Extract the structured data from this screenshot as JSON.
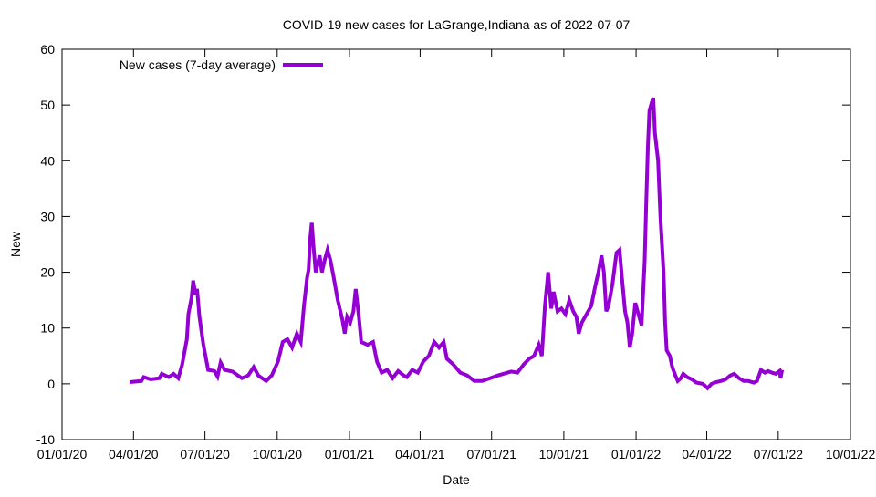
{
  "chart_data": {
    "type": "line",
    "title": "COVID-19 new cases for LaGrange,Indiana as of 2022-07-07",
    "xlabel": "Date",
    "ylabel": "New",
    "x_origin": "2020-01-01",
    "x_unit": "days since x_origin",
    "xlim": [
      0,
      1004
    ],
    "ylim": [
      -10,
      60
    ],
    "yticks": [
      -10,
      0,
      10,
      20,
      30,
      40,
      50,
      60
    ],
    "xticks": [
      {
        "day": 0,
        "label": "01/01/20"
      },
      {
        "day": 91,
        "label": "04/01/20"
      },
      {
        "day": 182,
        "label": "07/01/20"
      },
      {
        "day": 274,
        "label": "10/01/20"
      },
      {
        "day": 366,
        "label": "01/01/21"
      },
      {
        "day": 456,
        "label": "04/01/21"
      },
      {
        "day": 547,
        "label": "07/01/21"
      },
      {
        "day": 639,
        "label": "10/01/21"
      },
      {
        "day": 731,
        "label": "01/01/22"
      },
      {
        "day": 821,
        "label": "04/01/22"
      },
      {
        "day": 912,
        "label": "07/01/22"
      },
      {
        "day": 1004,
        "label": "10/01/22"
      }
    ],
    "grid": false,
    "legend_position": "top-left",
    "series": [
      {
        "name": "New cases (7-day average)",
        "color": "#9400d3",
        "points": [
          [
            86,
            0.3
          ],
          [
            101,
            0.5
          ],
          [
            104,
            1.2
          ],
          [
            113,
            0.8
          ],
          [
            124,
            1.0
          ],
          [
            127,
            1.8
          ],
          [
            136,
            1.2
          ],
          [
            142,
            1.8
          ],
          [
            148,
            1.0
          ],
          [
            153,
            3.5
          ],
          [
            159,
            8
          ],
          [
            161,
            12.5
          ],
          [
            165,
            15.5
          ],
          [
            167,
            18.5
          ],
          [
            170,
            16
          ],
          [
            172,
            17
          ],
          [
            175,
            12
          ],
          [
            180,
            7
          ],
          [
            186,
            2.5
          ],
          [
            194,
            2.3
          ],
          [
            198,
            1.3
          ],
          [
            202,
            3.8
          ],
          [
            207,
            2.5
          ],
          [
            217,
            2.2
          ],
          [
            229,
            1.0
          ],
          [
            237,
            1.5
          ],
          [
            244,
            3
          ],
          [
            250,
            1.5
          ],
          [
            260,
            0.5
          ],
          [
            267,
            1.5
          ],
          [
            275,
            4
          ],
          [
            281,
            7.5
          ],
          [
            287,
            8
          ],
          [
            293,
            6.5
          ],
          [
            299,
            9
          ],
          [
            304,
            7.5
          ],
          [
            308,
            14
          ],
          [
            312,
            19
          ],
          [
            314,
            20.5
          ],
          [
            316,
            26
          ],
          [
            318,
            29
          ],
          [
            320,
            25
          ],
          [
            323,
            20
          ],
          [
            328,
            23
          ],
          [
            331,
            20
          ],
          [
            335,
            22.5
          ],
          [
            338,
            24
          ],
          [
            342,
            22
          ],
          [
            346,
            19
          ],
          [
            351,
            15
          ],
          [
            357,
            11.5
          ],
          [
            360,
            9
          ],
          [
            363,
            12
          ],
          [
            367,
            11
          ],
          [
            371,
            13
          ],
          [
            374,
            17
          ],
          [
            378,
            12
          ],
          [
            381,
            7.5
          ],
          [
            389,
            7
          ],
          [
            396,
            7.5
          ],
          [
            401,
            4
          ],
          [
            407,
            2
          ],
          [
            414,
            2.5
          ],
          [
            421,
            1
          ],
          [
            428,
            2.3
          ],
          [
            435,
            1.5
          ],
          [
            439,
            1.2
          ],
          [
            446,
            2.5
          ],
          [
            453,
            2
          ],
          [
            460,
            4
          ],
          [
            467,
            5
          ],
          [
            474,
            7.5
          ],
          [
            480,
            6.5
          ],
          [
            486,
            7.5
          ],
          [
            490,
            4.5
          ],
          [
            498,
            3.5
          ],
          [
            507,
            2
          ],
          [
            516,
            1.5
          ],
          [
            525,
            0.5
          ],
          [
            535,
            0.5
          ],
          [
            545,
            1
          ],
          [
            555,
            1.5
          ],
          [
            562,
            1.8
          ],
          [
            572,
            2.2
          ],
          [
            580,
            2
          ],
          [
            588,
            3.5
          ],
          [
            595,
            4.5
          ],
          [
            601,
            5
          ],
          [
            607,
            7
          ],
          [
            611,
            5
          ],
          [
            615,
            14
          ],
          [
            619,
            20
          ],
          [
            623,
            13.5
          ],
          [
            626,
            16.5
          ],
          [
            631,
            13
          ],
          [
            636,
            13.5
          ],
          [
            641,
            12.5
          ],
          [
            646,
            15
          ],
          [
            651,
            13
          ],
          [
            655,
            12
          ],
          [
            658,
            9
          ],
          [
            662,
            11
          ],
          [
            668,
            12.5
          ],
          [
            674,
            14
          ],
          [
            679,
            17.5
          ],
          [
            683,
            20
          ],
          [
            687,
            23
          ],
          [
            690,
            20
          ],
          [
            693,
            13
          ],
          [
            696,
            14
          ],
          [
            701,
            18
          ],
          [
            706,
            23.5
          ],
          [
            710,
            24
          ],
          [
            713,
            19
          ],
          [
            717,
            13
          ],
          [
            720,
            11
          ],
          [
            723,
            6.5
          ],
          [
            726,
            9
          ],
          [
            730,
            14.5
          ],
          [
            734,
            12.5
          ],
          [
            738,
            10.5
          ],
          [
            742,
            22
          ],
          [
            744,
            33
          ],
          [
            746,
            42.5
          ],
          [
            748,
            49
          ],
          [
            751,
            50.5
          ],
          [
            753,
            51.3
          ],
          [
            755,
            45
          ],
          [
            759,
            40
          ],
          [
            762,
            30
          ],
          [
            766,
            20
          ],
          [
            768,
            11
          ],
          [
            770,
            6
          ],
          [
            774,
            5
          ],
          [
            777,
            3
          ],
          [
            781,
            1.5
          ],
          [
            784,
            0.5
          ],
          [
            788,
            1
          ],
          [
            791,
            1.8
          ],
          [
            796,
            1.2
          ],
          [
            802,
            0.8
          ],
          [
            808,
            0.2
          ],
          [
            816,
            0
          ],
          [
            822,
            -0.8
          ],
          [
            827,
            0
          ],
          [
            833,
            0.3
          ],
          [
            839,
            0.5
          ],
          [
            845,
            0.8
          ],
          [
            851,
            1.5
          ],
          [
            856,
            1.8
          ],
          [
            862,
            1.0
          ],
          [
            868,
            0.5
          ],
          [
            874,
            0.5
          ],
          [
            881,
            0.2
          ],
          [
            885,
            0.5
          ],
          [
            890,
            2.5
          ],
          [
            895,
            2
          ],
          [
            899,
            2.3
          ],
          [
            904,
            2.0
          ],
          [
            909,
            1.8
          ],
          [
            914,
            2.3
          ],
          [
            915,
            1
          ],
          [
            917,
            2.5
          ]
        ]
      }
    ]
  }
}
